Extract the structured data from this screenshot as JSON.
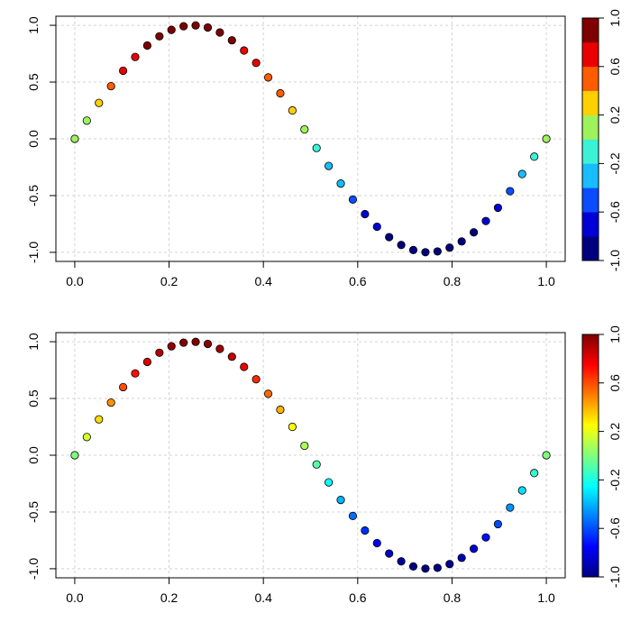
{
  "chart_data": [
    {
      "type": "scatter",
      "title": "",
      "xlabel": "",
      "ylabel": "",
      "x": [
        0.0,
        0.0256,
        0.0513,
        0.0769,
        0.1026,
        0.1282,
        0.1538,
        0.1795,
        0.2051,
        0.2308,
        0.2564,
        0.2821,
        0.3077,
        0.3333,
        0.359,
        0.3846,
        0.4103,
        0.4359,
        0.4615,
        0.4872,
        0.5128,
        0.5385,
        0.5641,
        0.5897,
        0.6154,
        0.641,
        0.6667,
        0.6923,
        0.7179,
        0.7436,
        0.7692,
        0.7949,
        0.8205,
        0.8462,
        0.8718,
        0.8974,
        0.9231,
        0.9487,
        0.9744,
        1.0
      ],
      "y": [
        0.0,
        0.16,
        0.316,
        0.464,
        0.6,
        0.721,
        0.822,
        0.903,
        0.96,
        0.992,
        0.999,
        0.981,
        0.937,
        0.868,
        0.778,
        0.669,
        0.541,
        0.401,
        0.25,
        0.083,
        -0.081,
        -0.239,
        -0.394,
        -0.535,
        -0.663,
        -0.774,
        -0.866,
        -0.935,
        -0.98,
        -0.999,
        -0.992,
        -0.959,
        -0.904,
        -0.824,
        -0.724,
        -0.607,
        -0.461,
        -0.31,
        -0.157,
        0.0
      ],
      "color_by": "y",
      "xlim": [
        0,
        1
      ],
      "ylim": [
        -1,
        1
      ],
      "x_ticks": [
        "0.0",
        "0.2",
        "0.4",
        "0.6",
        "0.8",
        "1.0"
      ],
      "y_ticks": [
        "-1.0",
        "-0.5",
        "0.0",
        "0.5",
        "1.0"
      ],
      "grid": true,
      "colorbar": {
        "style": "discrete",
        "range": [
          -1,
          1
        ],
        "tick_labels": [
          "-1.0",
          "-0.6",
          "-0.2",
          "0.2",
          "0.6",
          "1.0"
        ],
        "colors": [
          "#00007F",
          "#0000D4",
          "#0A4CFF",
          "#17BDFF",
          "#3BF2D6",
          "#9EF25B",
          "#FFCF00",
          "#FF5C00",
          "#EA0000",
          "#7F0000"
        ]
      }
    },
    {
      "type": "scatter",
      "title": "",
      "xlabel": "",
      "ylabel": "",
      "x": [
        0.0,
        0.0256,
        0.0513,
        0.0769,
        0.1026,
        0.1282,
        0.1538,
        0.1795,
        0.2051,
        0.2308,
        0.2564,
        0.2821,
        0.3077,
        0.3333,
        0.359,
        0.3846,
        0.4103,
        0.4359,
        0.4615,
        0.4872,
        0.5128,
        0.5385,
        0.5641,
        0.5897,
        0.6154,
        0.641,
        0.6667,
        0.6923,
        0.7179,
        0.7436,
        0.7692,
        0.7949,
        0.8205,
        0.8462,
        0.8718,
        0.8974,
        0.9231,
        0.9487,
        0.9744,
        1.0
      ],
      "y": [
        0.0,
        0.16,
        0.316,
        0.464,
        0.6,
        0.721,
        0.822,
        0.903,
        0.96,
        0.992,
        0.999,
        0.981,
        0.937,
        0.868,
        0.778,
        0.669,
        0.541,
        0.401,
        0.25,
        0.083,
        -0.081,
        -0.239,
        -0.394,
        -0.535,
        -0.663,
        -0.774,
        -0.866,
        -0.935,
        -0.98,
        -0.999,
        -0.992,
        -0.959,
        -0.904,
        -0.824,
        -0.724,
        -0.607,
        -0.461,
        -0.31,
        -0.157,
        0.0
      ],
      "color_by": "y",
      "xlim": [
        0,
        1
      ],
      "ylim": [
        -1,
        1
      ],
      "x_ticks": [
        "0.0",
        "0.2",
        "0.4",
        "0.6",
        "0.8",
        "1.0"
      ],
      "y_ticks": [
        "-1.0",
        "-0.5",
        "0.0",
        "0.5",
        "1.0"
      ],
      "grid": true,
      "colorbar": {
        "style": "continuous",
        "range": [
          -1,
          1
        ],
        "tick_labels": [
          "-1.0",
          "-0.6",
          "-0.2",
          "0.2",
          "0.6",
          "1.0"
        ],
        "colors": [
          "#00007F",
          "#0000FF",
          "#007FFF",
          "#00FFFF",
          "#7FFF7F",
          "#FFFF00",
          "#FF7F00",
          "#FF0000",
          "#7F0000"
        ]
      }
    }
  ]
}
